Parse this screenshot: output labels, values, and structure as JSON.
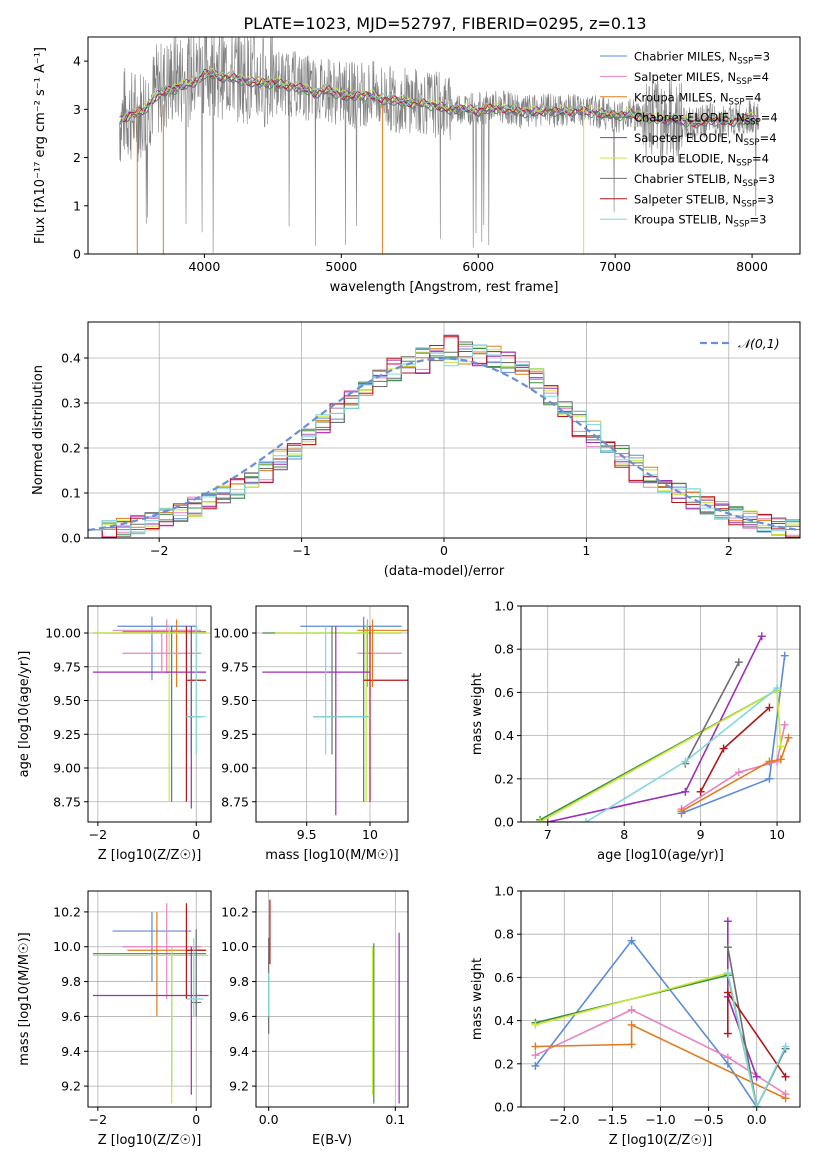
{
  "figure": {
    "title": "PLATE=1023, MJD=52797, FIBERID=0295, z=0.13"
  },
  "colors": {
    "chabrier_miles": "#5b8bd6",
    "salpeter_miles": "#e882c0",
    "kroupa_miles": "#e07b1f",
    "chabrier_elodie": "#3f8f3f",
    "salpeter_elodie": "#9a2fb8",
    "kroupa_elodie": "#c8ea3a",
    "chabrier_stelib": "#6e6e6e",
    "salpeter_stelib": "#b2171a",
    "kroupa_stelib": "#7fd8dc",
    "data_spectrum": "#808080"
  },
  "chart_data": [
    {
      "id": "spectrum",
      "type": "line",
      "title": "PLATE=1023, MJD=52797, FIBERID=0295, z=0.13",
      "xlabel": "wavelength [Angstrom, rest frame]",
      "ylabel": "Flux [fλ10⁻¹⁷ erg cm⁻² s⁻¹ A⁻¹]",
      "xlim": [
        3150,
        8350
      ],
      "ylim": [
        0,
        4.5
      ],
      "xticks": [
        4000,
        5000,
        6000,
        7000,
        8000
      ],
      "yticks": [
        0,
        1,
        2,
        3,
        4
      ],
      "grid": false,
      "legend_position": "top-right",
      "legend": [
        "Chabrier MILES, N_SSP=3",
        "Salpeter MILES, N_SSP=4",
        "Kroupa MILES, N_SSP=4",
        "Chabrier ELODIE, N_SSP=4",
        "Salpeter ELODIE, N_SSP=4",
        "Kroupa ELODIE, N_SSP=4",
        "Chabrier STELIB, N_SSP=3",
        "Salpeter STELIB, N_SSP=3",
        "Kroupa STELIB, N_SSP=3"
      ],
      "series": [
        {
          "name": "data",
          "x": [
            3380,
            3420,
            3470,
            3520,
            3580,
            3650,
            3720,
            3800,
            3870,
            3950,
            4000,
            4100,
            4200,
            4300,
            4400,
            4500,
            4600,
            4700,
            4800,
            4900,
            5000,
            5100,
            5200,
            5300,
            5400,
            5500,
            5600,
            5700,
            5800,
            5900,
            6000,
            6100,
            6200,
            6300,
            6400,
            6500,
            6600,
            6700,
            6800,
            6900,
            7000,
            7100,
            7200,
            7300,
            7400,
            7500,
            7600,
            7700,
            7800,
            7900,
            8000,
            8050
          ],
          "y": [
            2.7,
            2.95,
            2.85,
            2.9,
            3.05,
            3.4,
            3.5,
            3.7,
            3.6,
            3.75,
            3.9,
            3.8,
            3.75,
            3.7,
            3.6,
            3.6,
            3.55,
            3.5,
            3.4,
            3.45,
            3.3,
            3.3,
            3.35,
            3.25,
            3.2,
            3.2,
            3.15,
            3.1,
            3.0,
            3.05,
            3.0,
            3.05,
            3.05,
            2.95,
            2.95,
            3.0,
            2.95,
            3.0,
            2.95,
            2.95,
            2.85,
            2.9,
            2.85,
            2.8,
            2.8,
            2.75,
            2.7,
            2.8,
            2.75,
            2.8,
            2.85,
            2.75
          ]
        },
        {
          "name": "model",
          "x": [
            3380,
            3450,
            3550,
            3650,
            3750,
            3850,
            3950,
            4000,
            4100,
            4200,
            4300,
            4400,
            4500,
            4600,
            4700,
            4800,
            4900,
            5000,
            5100,
            5200,
            5300,
            5400,
            5500,
            5600,
            5700,
            5800,
            5900,
            6000,
            6100,
            6200,
            6300,
            6400,
            6500,
            6600,
            6700,
            6800,
            6900,
            7000,
            7100,
            7200,
            7300,
            7400,
            7500,
            7600,
            7700,
            7800,
            7900,
            8000,
            8050
          ],
          "y": [
            2.75,
            2.9,
            2.95,
            3.3,
            3.4,
            3.5,
            3.6,
            3.75,
            3.7,
            3.65,
            3.6,
            3.55,
            3.55,
            3.5,
            3.45,
            3.35,
            3.4,
            3.3,
            3.28,
            3.3,
            3.22,
            3.18,
            3.15,
            3.12,
            3.08,
            3.0,
            3.02,
            2.98,
            3.02,
            3.02,
            2.95,
            2.95,
            2.98,
            2.95,
            2.98,
            2.95,
            2.93,
            2.88,
            2.9,
            2.85,
            2.8,
            2.8,
            2.76,
            2.72,
            2.78,
            2.75,
            2.78,
            2.82,
            2.76
          ]
        }
      ]
    },
    {
      "id": "residuals",
      "type": "histogram",
      "xlabel": "(data-model)/error",
      "ylabel": "Normed distribution",
      "xlim": [
        -2.5,
        2.5
      ],
      "ylim": [
        0,
        0.48
      ],
      "xticks": [
        -2,
        -1,
        0,
        1,
        2
      ],
      "yticks": [
        0.0,
        0.1,
        0.2,
        0.3,
        0.4
      ],
      "grid": true,
      "legend_position": "top-right",
      "legend": [
        "𝒩(0,1)"
      ],
      "bin_width": 0.1,
      "series": [
        {
          "name": "Chabrier MILES",
          "values": [
            0.02,
            0.03,
            0.05,
            0.07,
            0.09,
            0.13,
            0.18,
            0.24,
            0.3,
            0.35,
            0.39,
            0.42,
            0.41,
            0.38,
            0.33,
            0.26,
            0.2,
            0.15,
            0.11,
            0.07,
            0.05,
            0.03,
            0.02
          ]
        },
        {
          "name": "Salpeter ELODIE",
          "values": [
            0.02,
            0.03,
            0.05,
            0.08,
            0.1,
            0.12,
            0.17,
            0.25,
            0.31,
            0.41,
            0.33,
            0.46,
            0.39,
            0.39,
            0.4,
            0.22,
            0.17,
            0.11,
            0.07,
            0.06,
            0.05,
            0.03,
            0.02
          ]
        },
        {
          "name": "Kroupa ELODIE",
          "values": [
            0.02,
            0.03,
            0.05,
            0.07,
            0.1,
            0.14,
            0.19,
            0.25,
            0.31,
            0.36,
            0.42,
            0.38,
            0.4,
            0.41,
            0.36,
            0.27,
            0.21,
            0.14,
            0.1,
            0.08,
            0.05,
            0.03,
            0.02
          ]
        }
      ],
      "normal_curve": {
        "mean": 0,
        "sigma": 1
      }
    },
    {
      "id": "age-vs-Z",
      "type": "errorbar",
      "xlabel": "Z [log10(Z/Z☉)]",
      "ylabel": "age  [log10(age/yr)]",
      "xlim": [
        -2.2,
        0.3
      ],
      "ylim": [
        8.6,
        10.2
      ],
      "xticks": [
        -2,
        0
      ],
      "yticks": [
        8.75,
        9.0,
        9.25,
        9.5,
        9.75,
        10.0
      ],
      "grid": true
    },
    {
      "id": "age-vs-mass",
      "type": "errorbar",
      "xlabel": "mass [log10(M/M☉)]",
      "ylabel": "",
      "xlim": [
        9.1,
        10.3
      ],
      "ylim": [
        8.6,
        10.2
      ],
      "xticks": [
        9.5,
        10.0
      ],
      "yticks": [
        8.75,
        9.0,
        9.25,
        9.5,
        9.75,
        10.0
      ],
      "grid": true
    },
    {
      "id": "massweight-vs-age",
      "type": "line",
      "xlabel": "age  [log10(age/yr)]",
      "ylabel": "mass weight",
      "xlim": [
        6.65,
        10.3
      ],
      "ylim": [
        0,
        1.0
      ],
      "xticks": [
        7,
        8,
        9,
        10
      ],
      "yticks": [
        0.0,
        0.2,
        0.4,
        0.6,
        0.8,
        1.0
      ],
      "grid": true,
      "series": [
        {
          "name": "Chabrier MILES",
          "x": [
            8.75,
            9.9,
            10.1
          ],
          "y": [
            0.04,
            0.2,
            0.77
          ]
        },
        {
          "name": "Salpeter MILES",
          "x": [
            8.75,
            9.5,
            10.0,
            10.1
          ],
          "y": [
            0.06,
            0.23,
            0.28,
            0.45
          ]
        },
        {
          "name": "Kroupa MILES",
          "x": [
            8.75,
            9.9,
            10.05,
            10.15
          ],
          "y": [
            0.05,
            0.28,
            0.29,
            0.39
          ]
        },
        {
          "name": "Chabrier ELODIE",
          "x": [
            6.9,
            10.0
          ],
          "y": [
            0.01,
            0.61
          ]
        },
        {
          "name": "Salpeter ELODIE",
          "x": [
            7.0,
            8.8,
            9.8
          ],
          "y": [
            0.0,
            0.14,
            0.86
          ]
        },
        {
          "name": "Kroupa ELODIE",
          "x": [
            6.9,
            10.0,
            10.05
          ],
          "y": [
            0.0,
            0.61,
            0.35
          ]
        },
        {
          "name": "Chabrier STELIB",
          "x": [
            8.8,
            9.5
          ],
          "y": [
            0.27,
            0.74
          ]
        },
        {
          "name": "Salpeter STELIB",
          "x": [
            9.0,
            9.3,
            9.9
          ],
          "y": [
            0.14,
            0.34,
            0.53
          ]
        },
        {
          "name": "Kroupa STELIB",
          "x": [
            7.5,
            8.8,
            10.0
          ],
          "y": [
            0.0,
            0.28,
            0.62
          ]
        }
      ]
    },
    {
      "id": "mass-vs-Z",
      "type": "errorbar",
      "xlabel": "Z [log10(Z/Z☉)]",
      "ylabel": "mass [log10(M/M☉)]",
      "xlim": [
        -2.2,
        0.3
      ],
      "ylim": [
        9.08,
        10.32
      ],
      "xticks": [
        -2,
        0
      ],
      "yticks": [
        9.2,
        9.4,
        9.6,
        9.8,
        10.0,
        10.2
      ],
      "grid": true
    },
    {
      "id": "mass-vs-ebv",
      "type": "errorbar",
      "xlabel": "E(B-V)",
      "ylabel": "",
      "xlim": [
        -0.01,
        0.11
      ],
      "ylim": [
        9.08,
        10.32
      ],
      "xticks": [
        0.0,
        0.1
      ],
      "yticks": [
        9.2,
        9.4,
        9.6,
        9.8,
        10.0,
        10.2
      ],
      "grid": true
    },
    {
      "id": "massweight-vs-Z",
      "type": "line",
      "xlabel": "Z [log10(Z/Z☉)]",
      "ylabel": "mass weight",
      "xlim": [
        -2.45,
        0.45
      ],
      "ylim": [
        0,
        1.0
      ],
      "xticks": [
        -2.0,
        -1.5,
        -1.0,
        -0.5,
        0.0
      ],
      "yticks": [
        0.0,
        0.2,
        0.4,
        0.6,
        0.8,
        1.0
      ],
      "grid": true,
      "series": [
        {
          "name": "Chabrier MILES",
          "x": [
            -2.3,
            -1.3,
            -0.3,
            0.0
          ],
          "y": [
            0.19,
            0.77,
            0.2,
            0.0
          ]
        },
        {
          "name": "Salpeter MILES",
          "x": [
            -2.3,
            -1.3,
            -0.3,
            0.3
          ],
          "y": [
            0.24,
            0.45,
            0.23,
            0.06
          ]
        },
        {
          "name": "Kroupa MILES",
          "x": [
            -2.3,
            -1.3,
            -1.3,
            0.3
          ],
          "y": [
            0.28,
            0.29,
            0.38,
            0.04
          ]
        },
        {
          "name": "Chabrier ELODIE",
          "x": [
            -2.3,
            -0.3,
            0.0
          ],
          "y": [
            0.39,
            0.61,
            0.0
          ]
        },
        {
          "name": "Salpeter ELODIE",
          "x": [
            -0.3,
            -0.3,
            0.0
          ],
          "y": [
            0.86,
            0.51,
            0.14
          ]
        },
        {
          "name": "Kroupa ELODIE",
          "x": [
            -2.3,
            -0.3,
            0.0
          ],
          "y": [
            0.38,
            0.62,
            0.0
          ]
        },
        {
          "name": "Chabrier STELIB",
          "x": [
            -0.3,
            0.0,
            0.3
          ],
          "y": [
            0.74,
            0.0,
            0.27
          ]
        },
        {
          "name": "Salpeter STELIB",
          "x": [
            -0.3,
            -0.3,
            0.3
          ],
          "y": [
            0.34,
            0.53,
            0.14
          ]
        },
        {
          "name": "Kroupa STELIB",
          "x": [
            -0.3,
            0.0,
            0.3
          ],
          "y": [
            0.62,
            0.0,
            0.28
          ]
        }
      ]
    }
  ]
}
